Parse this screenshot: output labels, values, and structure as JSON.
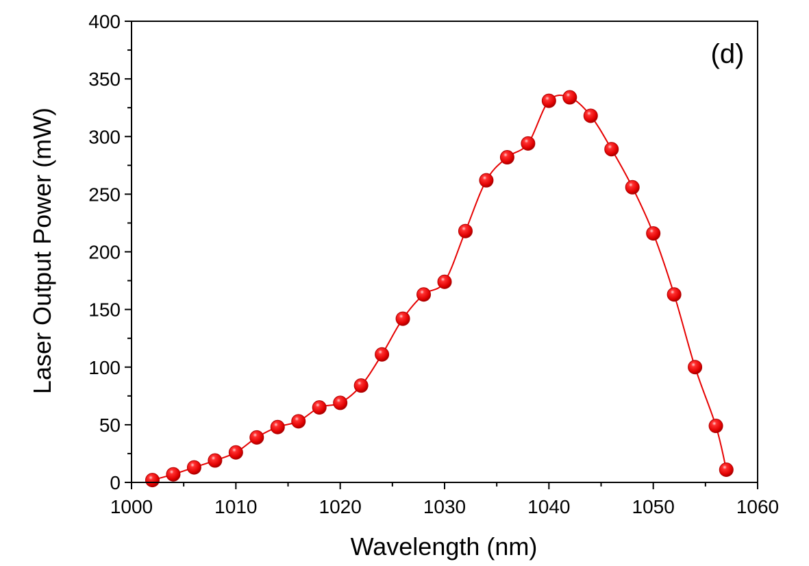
{
  "chart_data": {
    "type": "line",
    "xlabel": "Wavelength (nm)",
    "ylabel": "Laser Output Power (mW)",
    "panel_label": "(d)",
    "xlim": [
      1000,
      1060
    ],
    "ylim": [
      0,
      400
    ],
    "xticks": [
      1000,
      1010,
      1020,
      1030,
      1040,
      1050,
      1060
    ],
    "yticks": [
      0,
      50,
      100,
      150,
      200,
      250,
      300,
      350,
      400
    ],
    "grid": false,
    "colors": {
      "series": "#e60000",
      "marker_edge": "#b00000",
      "marker_highlight": "#ffb3b3",
      "axis": "#000000"
    },
    "series": [
      {
        "x": [
          1002,
          1004,
          1006,
          1008,
          1010,
          1012,
          1014,
          1016,
          1018,
          1020,
          1022,
          1024,
          1026,
          1028,
          1030,
          1032,
          1034,
          1036,
          1038,
          1040,
          1042,
          1044,
          1046,
          1048,
          1050,
          1052,
          1054,
          1056,
          1057
        ],
        "values": [
          2,
          7,
          13,
          19,
          26,
          39,
          48,
          53,
          65,
          69,
          84,
          111,
          142,
          163,
          174,
          218,
          262,
          282,
          294,
          331,
          334,
          318,
          289,
          256,
          216,
          163,
          100,
          49,
          11
        ]
      }
    ]
  }
}
